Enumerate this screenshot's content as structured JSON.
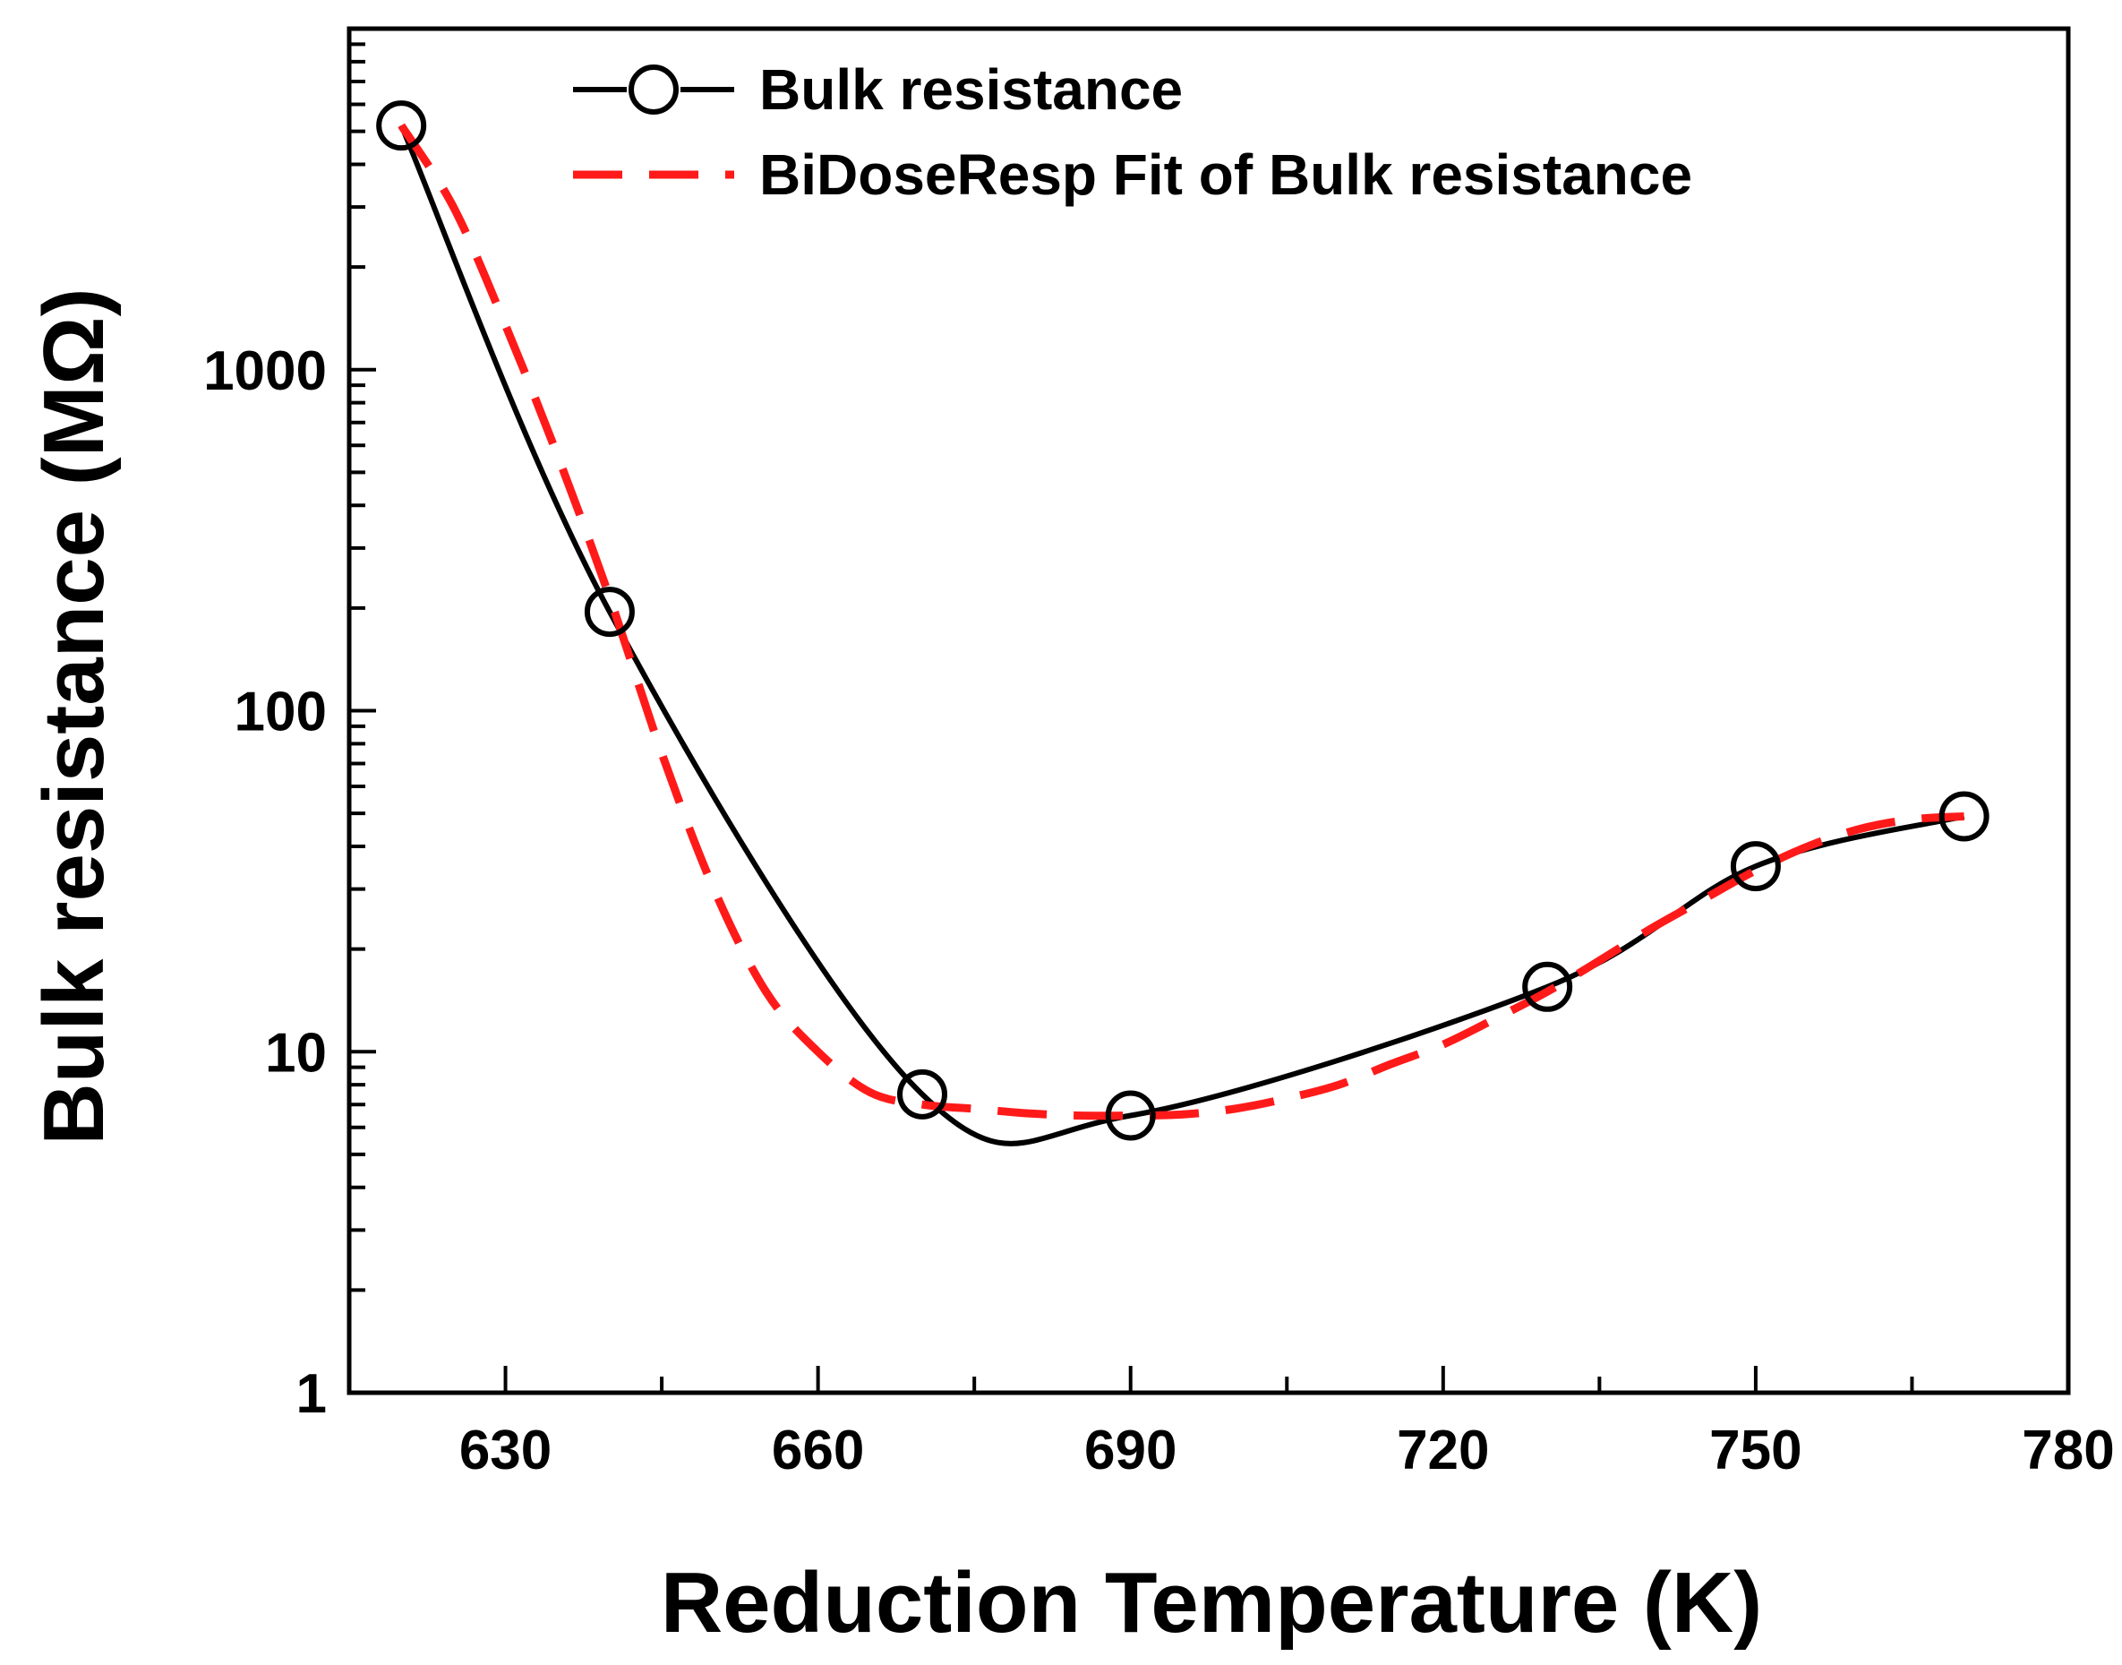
{
  "chart_data": {
    "type": "line",
    "title": "",
    "xlabel": "Reduction Temperature (K)",
    "ylabel": "Bulk resistance (MΩ)",
    "xlim": [
      615,
      780
    ],
    "ylim": [
      1,
      10000
    ],
    "yscale": "log",
    "x_ticks": [
      630,
      660,
      690,
      720,
      750,
      780
    ],
    "x_tick_labels": [
      "630",
      "660",
      "690",
      "720",
      "750",
      "780"
    ],
    "y_ticks": [
      1,
      10,
      100,
      1000
    ],
    "y_tick_labels": [
      "1",
      "10",
      "100",
      "1000"
    ],
    "grid": false,
    "legend_position": "top-left",
    "series": [
      {
        "name": "Bulk resistance",
        "style": "line-with-open-circles",
        "color": "#000000",
        "x": [
          620,
          640,
          670,
          690,
          730,
          750,
          770
        ],
        "y": [
          5200,
          195,
          7.5,
          6.5,
          15.5,
          35,
          49
        ]
      },
      {
        "name": "BiDoseResp Fit of Bulk resistance",
        "style": "dashed",
        "color": "#ff1a1a",
        "x": [
          620,
          625,
          630,
          635,
          640,
          645,
          650,
          655,
          660,
          665,
          670,
          675,
          680,
          685,
          690,
          695,
          700,
          705,
          710,
          715,
          720,
          725,
          730,
          735,
          740,
          745,
          750,
          755,
          760,
          765,
          770
        ],
        "y": [
          5200,
          3000,
          1350,
          560,
          215,
          75,
          30,
          15,
          10,
          7.6,
          7.0,
          6.8,
          6.6,
          6.5,
          6.5,
          6.55,
          6.8,
          7.3,
          8.0,
          9.2,
          10.5,
          12.5,
          15.0,
          18.5,
          23,
          28,
          34,
          40,
          45,
          48,
          49
        ]
      }
    ]
  }
}
